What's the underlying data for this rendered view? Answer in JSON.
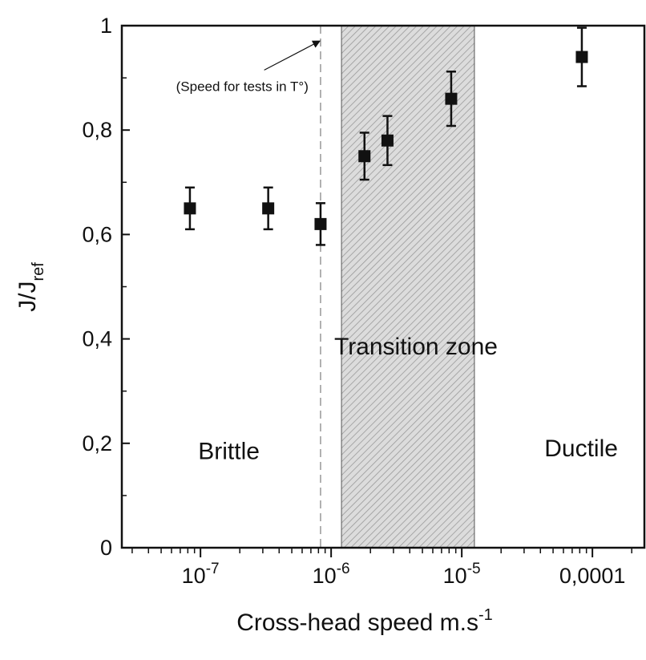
{
  "chart_data": {
    "type": "scatter",
    "xscale": "log",
    "xlabel": "Cross-head speed m.s",
    "xlabel_sup": "-1",
    "ylabel": "J/J",
    "ylabel_sub": "ref",
    "xlim": [
      2.5e-08,
      0.00025
    ],
    "ylim": [
      0,
      1
    ],
    "x_ticks": [
      {
        "value": 1e-07,
        "base": "10",
        "exp": "-7",
        "text": ""
      },
      {
        "value": 1e-06,
        "base": "10",
        "exp": "-6",
        "text": ""
      },
      {
        "value": 1e-05,
        "base": "10",
        "exp": "-5",
        "text": ""
      },
      {
        "value": 0.0001,
        "base": "",
        "exp": "",
        "text": "0,0001"
      }
    ],
    "y_ticks": [
      {
        "value": 0,
        "text": "0"
      },
      {
        "value": 0.2,
        "text": "0,2"
      },
      {
        "value": 0.4,
        "text": "0,4"
      },
      {
        "value": 0.6,
        "text": "0,6"
      },
      {
        "value": 0.8,
        "text": "0,8"
      },
      {
        "value": 1,
        "text": "1"
      }
    ],
    "points": [
      {
        "x": 8.3e-08,
        "y": 0.65,
        "err": 0.04
      },
      {
        "x": 3.3e-07,
        "y": 0.65,
        "err": 0.04
      },
      {
        "x": 8.3e-07,
        "y": 0.62,
        "err": 0.04
      },
      {
        "x": 1.8e-06,
        "y": 0.75,
        "err": 0.045
      },
      {
        "x": 2.7e-06,
        "y": 0.78,
        "err": 0.047
      },
      {
        "x": 8.3e-06,
        "y": 0.86,
        "err": 0.052
      },
      {
        "x": 8.3e-05,
        "y": 0.94,
        "err": 0.056
      }
    ],
    "transition_zone": {
      "x_start": 1.2e-06,
      "x_end": 1.25e-05,
      "label": "Transition zone",
      "label_y": 0.37
    },
    "regions": [
      {
        "label": "Brittle",
        "x": 1.65e-07,
        "y": 0.17
      },
      {
        "label": "Ductile",
        "x": 8.2e-05,
        "y": 0.175
      }
    ],
    "reference_line": {
      "x": 8.3e-07,
      "label": "(Speed for tests in T°)",
      "label_x": 6.5e-08,
      "label_y": 0.875,
      "arrow_to_x": 8.7e-07,
      "arrow_to_y": 0.97
    },
    "colors": {
      "marker": "#111111",
      "zone_fill": "#d4d4d4",
      "zone_pattern": "#aaaaaa",
      "reference_line": "#888888"
    }
  }
}
